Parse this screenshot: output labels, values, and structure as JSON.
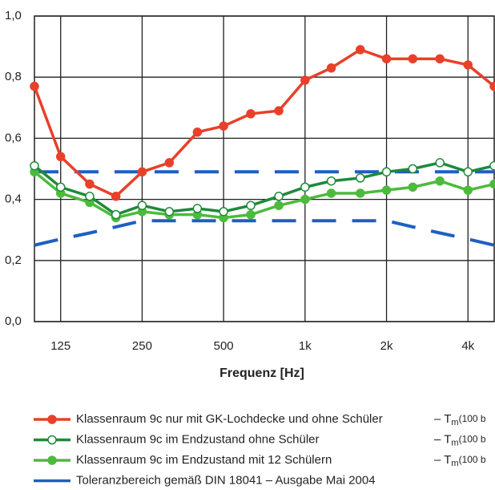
{
  "chart_data": {
    "type": "line",
    "x_label": "Frequenz [Hz]",
    "x_scale": "log",
    "x": [
      100,
      125,
      160,
      200,
      250,
      315,
      400,
      500,
      630,
      800,
      1000,
      1250,
      1600,
      2000,
      2500,
      3150,
      4000,
      5000
    ],
    "xlim": [
      100,
      5000
    ],
    "xticks": [
      125,
      250,
      500,
      {
        "value": 1000,
        "label": "1k"
      },
      {
        "value": 2000,
        "label": "2k"
      },
      {
        "value": 4000,
        "label": "4k"
      }
    ],
    "ylim": [
      0,
      1
    ],
    "yticks": [
      {
        "value": 0,
        "label": "0,0"
      },
      {
        "value": 0.2,
        "label": "0,2"
      },
      {
        "value": 0.4,
        "label": "0,4"
      },
      {
        "value": 0.6,
        "label": "0,6"
      },
      {
        "value": 0.8,
        "label": "0,8"
      },
      {
        "value": 1,
        "label": "1,0"
      }
    ],
    "grid": true,
    "series": [
      {
        "name": "Klassenraum 9c nur mit GK-Lochdecke und ohne Schüler",
        "color": "#e8402a",
        "marker": "filled",
        "values": [
          0.77,
          0.54,
          0.45,
          0.41,
          0.49,
          0.52,
          0.62,
          0.64,
          0.68,
          0.69,
          0.79,
          0.83,
          0.89,
          0.86,
          0.86,
          0.86,
          0.84,
          0.77
        ]
      },
      {
        "name": "Klassenraum 9c im Endzustand ohne Schüler",
        "color": "#1e8a3a",
        "marker": "open",
        "values": [
          0.51,
          0.44,
          0.41,
          0.35,
          0.38,
          0.36,
          0.37,
          0.36,
          0.38,
          0.41,
          0.44,
          0.46,
          0.47,
          0.49,
          0.5,
          0.52,
          0.49,
          0.51
        ]
      },
      {
        "name": "Klassenraum 9c im Endzustand mit 12 Schülern",
        "color": "#4cbb3c",
        "marker": "filled",
        "values": [
          0.49,
          0.42,
          0.39,
          0.34,
          0.36,
          0.35,
          0.35,
          0.34,
          0.35,
          0.38,
          0.4,
          0.42,
          0.42,
          0.43,
          0.44,
          0.46,
          0.43,
          0.45
        ]
      },
      {
        "name": "Toleranzbereich gemäß DIN 18041 – Ausgabe Mai 2004",
        "color": "#1f5fbf",
        "marker": "none",
        "dashed": true,
        "values": [
          0.49,
          0.49,
          0.49,
          0.49,
          0.49,
          0.49,
          0.49,
          0.49,
          0.49,
          0.49,
          0.49,
          0.49,
          0.49,
          0.49,
          0.49,
          0.49,
          0.49,
          0.49
        ],
        "lower": [
          0.25,
          0.27,
          0.29,
          0.31,
          0.33,
          0.33,
          0.33,
          0.33,
          0.33,
          0.33,
          0.33,
          0.33,
          0.33,
          0.33,
          0.31,
          0.29,
          0.27,
          0.25
        ]
      }
    ],
    "notes": [
      {
        "prefix": "– T",
        "sub": "m",
        "suffix": "(100 b"
      },
      {
        "prefix": "– T",
        "sub": "m",
        "suffix": "(100 b"
      },
      {
        "prefix": "– T",
        "sub": "m",
        "suffix": "(100 b"
      }
    ]
  }
}
